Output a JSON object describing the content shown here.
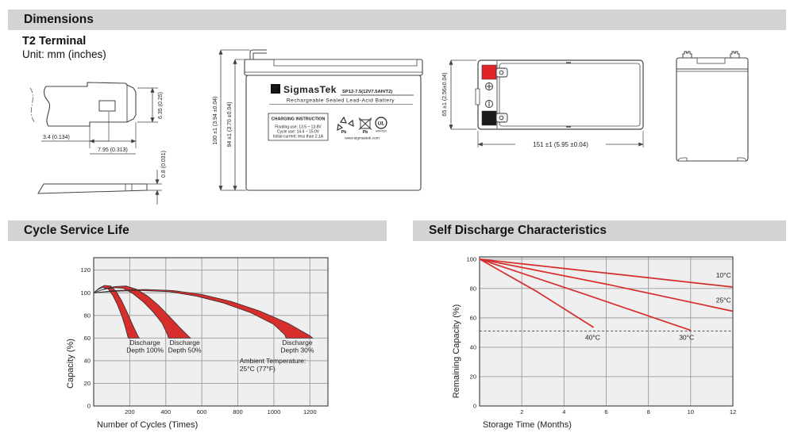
{
  "header": {
    "dimensions_title": "Dimensions",
    "terminal_type": "T2 Terminal",
    "unit_note": "Unit: mm (inches)"
  },
  "sections": {
    "cycle_title": "Cycle Service Life",
    "self_discharge_title": "Self Discharge Characteristics"
  },
  "terminal_drawing": {
    "dim_hole": "3.4 (0.134)",
    "dim_width": "7.95 (0.313)",
    "dim_height": "6.35 (0.25)",
    "dim_thickness": "0.8 (0.031)"
  },
  "front_view": {
    "dim_total_height": "100 ±1 (3.94 ±0.04)",
    "dim_case_height": "94 ±1 (3.70 ±0.04)",
    "brand_symbol": "Σ",
    "brand": "SigmasTek",
    "model": "SP12-7.5(12V7.5AH/T2)",
    "type_line": "Rechargeable Sealed Lead-Acid Battery",
    "charging": {
      "title": "CHARGING INSTRUCTION",
      "floating": "Floating use: 13.5 ~ 13.8V",
      "cycle": "Cycle use: 14.4 ~ 15.0V",
      "initial": "Initial current: less than 2.1A"
    },
    "pb_recycle": "Pb",
    "pb_trash": "Pb",
    "ul_mark": "UL",
    "ul_number": "MH47629",
    "website": "www.sigmastek.com"
  },
  "top_view": {
    "dim_height": "65 ±1 (2.56±0.04)",
    "dim_length": "151 ±1 (5.95 ±0.04)"
  },
  "colors": {
    "header_bg": "#d3d3d3",
    "plot_bg": "#efefef",
    "grid": "#9b9b9b",
    "plot_border": "#4a4a4a",
    "red": "#d62e2c",
    "terminal_red": "#e02428",
    "terminal_black": "#1a1a1a"
  },
  "chart_data": [
    {
      "type": "area",
      "title": "Cycle Service Life",
      "xlabel": "Number of Cycles (Times)",
      "ylabel": "Capacity (%)",
      "xlim": [
        0,
        1300
      ],
      "ylim": [
        0,
        131
      ],
      "xticks": [
        200,
        400,
        600,
        800,
        1000,
        1200
      ],
      "yticks": [
        0,
        20,
        40,
        60,
        80,
        100,
        120
      ],
      "grid": true,
      "legend_position": "none",
      "ylabel_dy": 40,
      "annotation": {
        "lines": [
          "Ambient Temperature:",
          "25°C (77°F)"
        ],
        "x": 810,
        "y": 38
      },
      "bands": [
        {
          "name": "Discharge Depth 100%",
          "label": [
            "Discharge",
            "Depth 100%"
          ],
          "label_x": 285,
          "label_y": 54,
          "upper": [
            [
              0,
              100
            ],
            [
              30,
              104
            ],
            [
              60,
              106.5
            ],
            [
              95,
              106
            ],
            [
              125,
              101
            ],
            [
              155,
              93
            ],
            [
              185,
              83
            ],
            [
              215,
              72
            ],
            [
              245,
              62
            ],
            [
              253,
              60
            ]
          ],
          "lower": [
            [
              0,
              100
            ],
            [
              25,
              103
            ],
            [
              50,
              104.8
            ],
            [
              80,
              103.5
            ],
            [
              105,
              98
            ],
            [
              130,
              90
            ],
            [
              155,
              80
            ],
            [
              175,
              70
            ],
            [
              190,
              61
            ],
            [
              192,
              60
            ]
          ]
        },
        {
          "name": "Discharge Depth 50%",
          "label": [
            "Discharge",
            "Depth 50%"
          ],
          "label_x": 505,
          "label_y": 54,
          "upper": [
            [
              0,
              100
            ],
            [
              60,
              103.5
            ],
            [
              120,
              105.5
            ],
            [
              180,
              106
            ],
            [
              240,
              103
            ],
            [
              300,
              97
            ],
            [
              360,
              89
            ],
            [
              420,
              79
            ],
            [
              480,
              69
            ],
            [
              530,
              61
            ],
            [
              537,
              60
            ]
          ],
          "lower": [
            [
              0,
              100
            ],
            [
              55,
              103
            ],
            [
              110,
              104.5
            ],
            [
              165,
              104
            ],
            [
              220,
              99
            ],
            [
              275,
              92
            ],
            [
              330,
              83
            ],
            [
              380,
              73
            ],
            [
              410,
              63
            ],
            [
              415,
              60
            ]
          ]
        },
        {
          "name": "Discharge Depth 30%",
          "label": [
            "Discharge",
            "Depth 30%"
          ],
          "label_x": 1130,
          "label_y": 54,
          "upper": [
            [
              0,
              100
            ],
            [
              120,
              102
            ],
            [
              280,
              103
            ],
            [
              440,
              102
            ],
            [
              600,
              98.5
            ],
            [
              760,
              92.5
            ],
            [
              920,
              84
            ],
            [
              1080,
              73
            ],
            [
              1200,
              62
            ],
            [
              1215,
              60
            ]
          ],
          "lower": [
            [
              0,
              100
            ],
            [
              110,
              101.3
            ],
            [
              260,
              102
            ],
            [
              420,
              101
            ],
            [
              570,
              97
            ],
            [
              720,
              91
            ],
            [
              870,
              82.5
            ],
            [
              1000,
              72
            ],
            [
              1060,
              63
            ],
            [
              1068,
              60
            ]
          ]
        }
      ]
    },
    {
      "type": "line",
      "title": "Self Discharge Characteristics",
      "xlabel": "Storage Time (Months)",
      "ylabel": "Remaining Capacity (%)",
      "xlim": [
        0,
        12
      ],
      "ylim": [
        0,
        101.5
      ],
      "xticks": [
        2,
        4,
        6,
        8,
        10,
        12
      ],
      "yticks": [
        0,
        20,
        40,
        60,
        80,
        100
      ],
      "grid": true,
      "legend_position": "inline-labels",
      "ylabel_dy": 25,
      "dashed_line_y": 51,
      "series": [
        {
          "name": "10°C",
          "points": [
            [
              0,
              100
            ],
            [
              6,
              90.5
            ],
            [
              12,
              81
            ]
          ],
          "label_x": 11.2,
          "label_y": 87.5
        },
        {
          "name": "25°C",
          "points": [
            [
              0,
              100
            ],
            [
              6,
              83
            ],
            [
              12,
              64.5
            ]
          ],
          "label_x": 11.2,
          "label_y": 70.5
        },
        {
          "name": "30°C",
          "points": [
            [
              0,
              100
            ],
            [
              5,
              76
            ],
            [
              10,
              51.5
            ]
          ],
          "label_x": 9.45,
          "label_y": 45
        },
        {
          "name": "40°C",
          "points": [
            [
              0,
              100
            ],
            [
              2.7,
              78
            ],
            [
              5.4,
              53.5
            ]
          ],
          "label_x": 5.0,
          "label_y": 45
        }
      ]
    }
  ]
}
